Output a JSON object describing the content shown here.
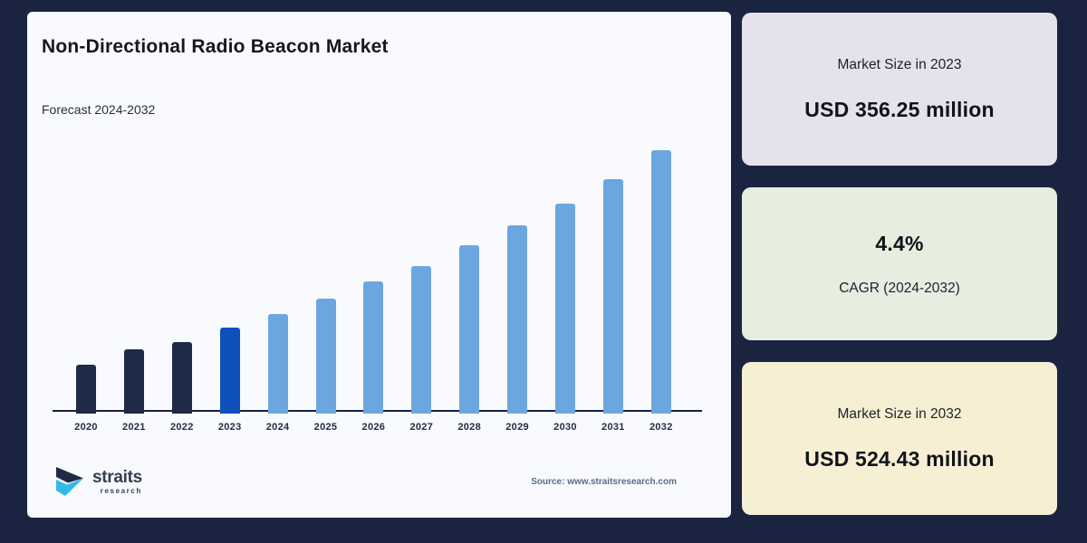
{
  "window": {
    "background": "#1a2440"
  },
  "main_card": {
    "background": "#f8fafd",
    "title": "Non-Directional Radio Beacon Market",
    "subtitle": "Forecast 2024-2032",
    "source_text": "Source: www.straitsresearch.com",
    "logo": {
      "brand": "straits",
      "brand_sub": "research"
    }
  },
  "chart_data": {
    "type": "bar",
    "title": "Non-Directional Radio Beacon Market",
    "subtitle": "Forecast 2024-2032",
    "unit": "USD million",
    "categories": [
      "2020",
      "2021",
      "2022",
      "2023",
      "2024",
      "2025",
      "2026",
      "2027",
      "2028",
      "2029",
      "2030",
      "2031",
      "2032"
    ],
    "values": [
      321,
      336,
      343,
      356.25,
      369,
      384,
      400,
      415,
      434,
      453,
      474,
      497,
      524.43
    ],
    "value_note": "356.25 (2023) and 524.43 (2032) are labeled on the infographic; other values estimated from bar heights; CAGR 4.4% (2024-2032)",
    "ylim": [
      275,
      532
    ],
    "grid": false,
    "legend": "none",
    "bar_roles": [
      "historical",
      "historical",
      "historical",
      "base-year",
      "forecast",
      "forecast",
      "forecast",
      "forecast",
      "forecast",
      "forecast",
      "forecast",
      "forecast",
      "forecast"
    ],
    "colors": {
      "historical": "#1e2a46",
      "base-year": "#0e51bb",
      "forecast": "#6ca6e1",
      "axis": "#16203a"
    }
  },
  "stat_cards": [
    {
      "top_text": "Market Size in 2023",
      "bottom_text": "USD 356.25 million",
      "background": "#e6e2ec",
      "emphasis": "bottom"
    },
    {
      "top_text": "4.4%",
      "bottom_text": "CAGR (2024-2032)",
      "background": "#e6eee0",
      "emphasis": "top"
    },
    {
      "top_text": "Market Size in 2032",
      "bottom_text": "USD 524.43 million",
      "background": "#f6efd4",
      "emphasis": "bottom"
    }
  ]
}
